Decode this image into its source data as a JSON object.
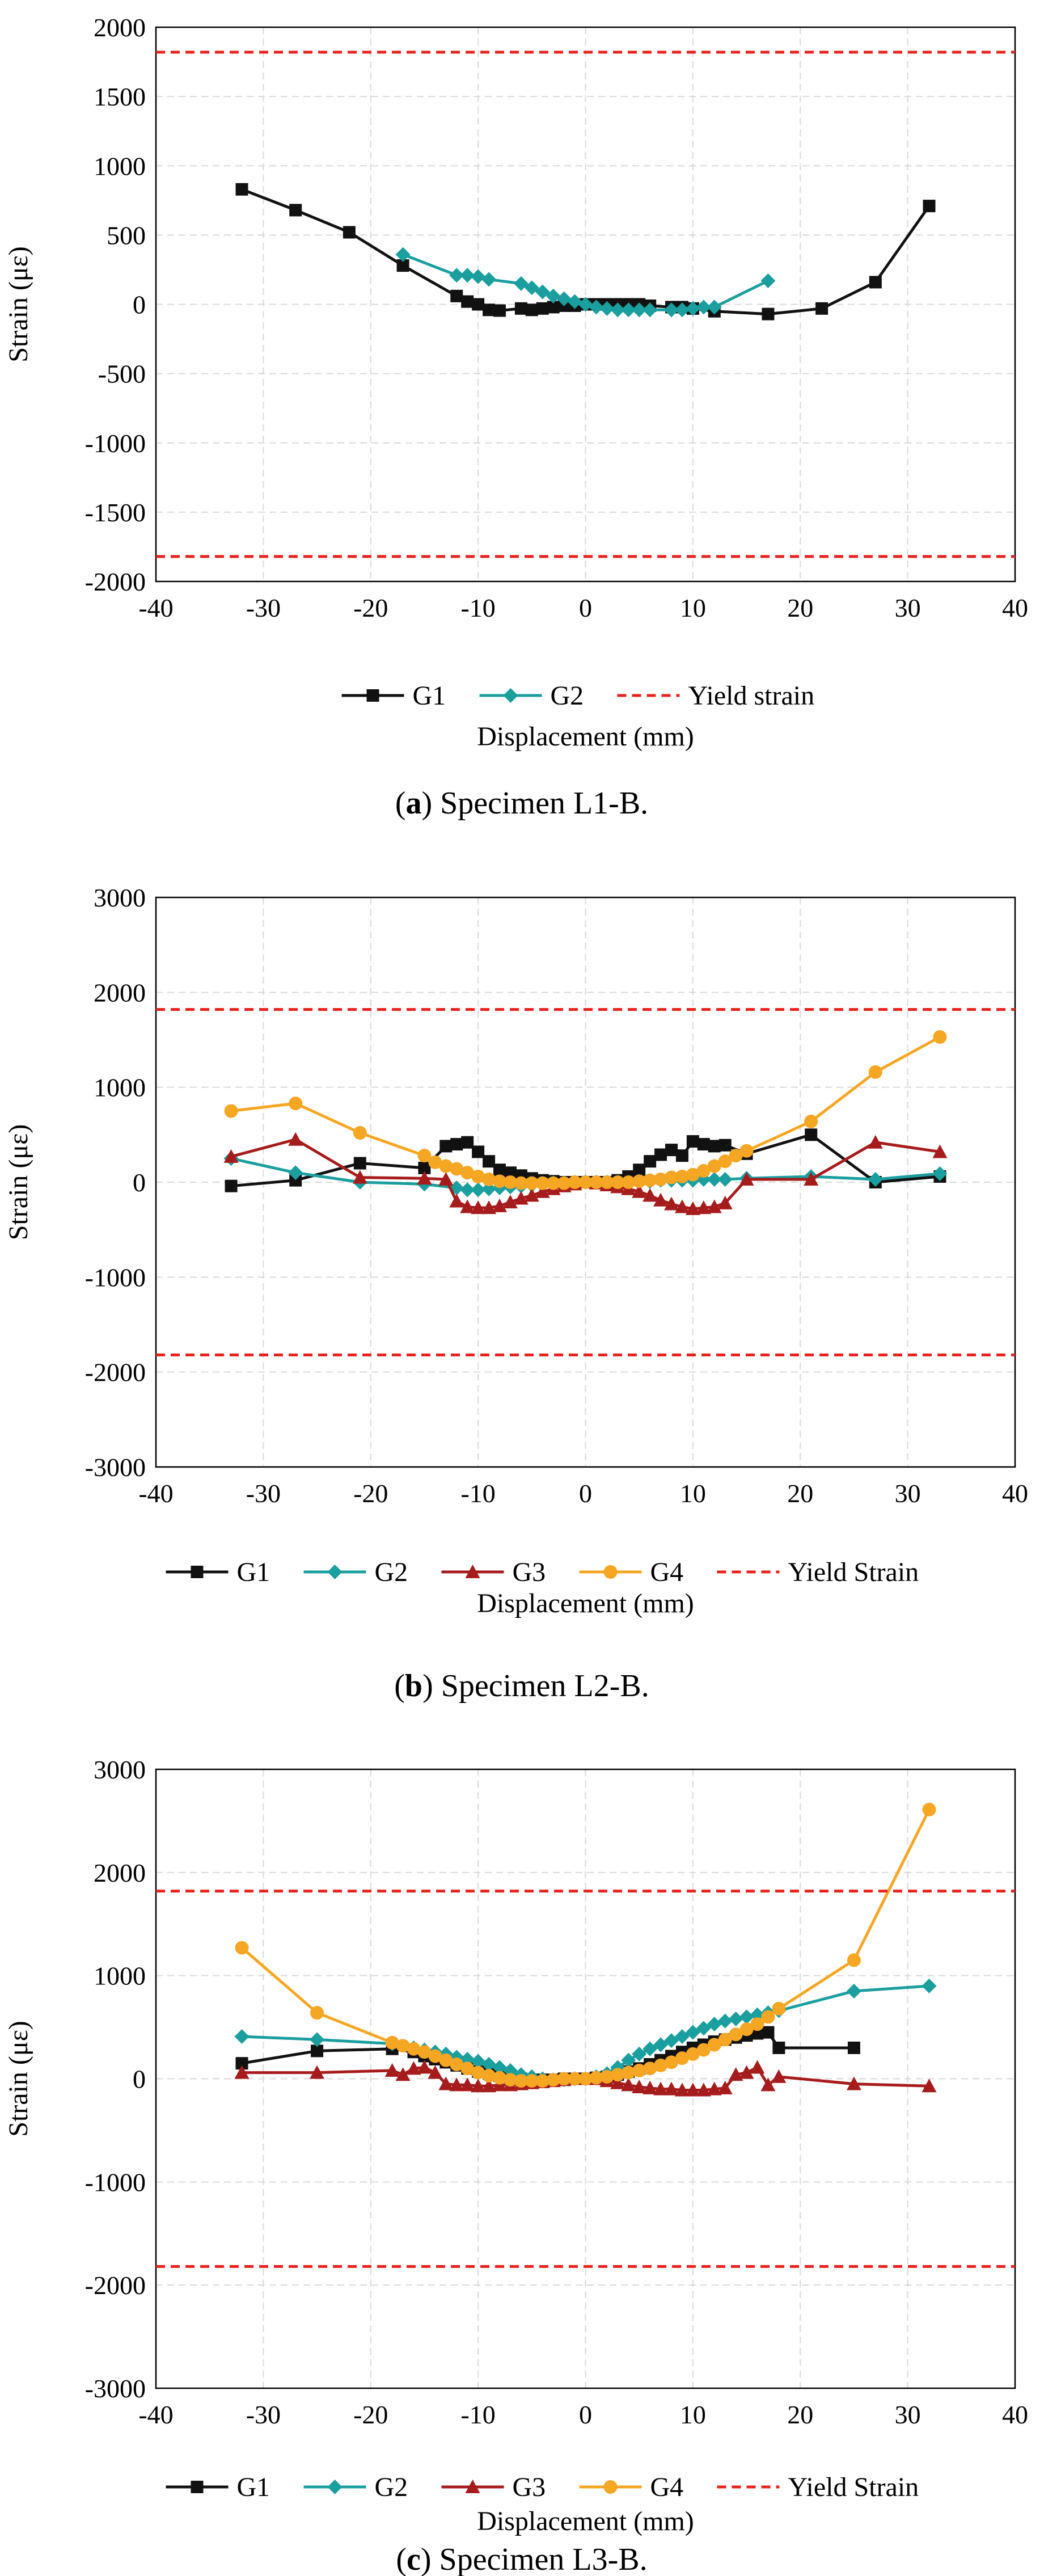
{
  "colors": {
    "G1": "#111111",
    "G2": "#1a9e9e",
    "G3": "#a61c1c",
    "G4": "#f5a623",
    "yield": "#e8231d"
  },
  "captions": [
    {
      "letter": "a",
      "rest": " Specimen L1-B."
    },
    {
      "letter": "b",
      "rest": " Specimen L2-B."
    },
    {
      "letter": "c",
      "rest": " Specimen L3-B."
    }
  ],
  "chart_data": [
    {
      "type": "line",
      "title": "",
      "xlabel": "Displacement (mm)",
      "ylabel": "Strain (με)",
      "xlim": [
        -40,
        40
      ],
      "ylim": [
        -2000,
        2000
      ],
      "xticks": [
        -40,
        -30,
        -20,
        -10,
        0,
        10,
        20,
        30,
        40
      ],
      "yticks": [
        -2000,
        -1500,
        -1000,
        -500,
        0,
        500,
        1000,
        1500,
        2000
      ],
      "grid": true,
      "legend": "bottom",
      "yield_strain": [
        1820,
        -1820
      ],
      "series": [
        {
          "name": "G1",
          "marker": "square",
          "color": "#111111",
          "x": [
            -32,
            -27,
            -22,
            -17,
            -12,
            -11,
            -10,
            -9,
            -8,
            -6,
            -5,
            -4,
            -3,
            -2,
            -1,
            0,
            1,
            2,
            3,
            4,
            5,
            6,
            8,
            9,
            10,
            12,
            17,
            22,
            27,
            32
          ],
          "y": [
            830,
            680,
            520,
            280,
            60,
            20,
            0,
            -40,
            -45,
            -30,
            -40,
            -30,
            -20,
            -10,
            -10,
            0,
            0,
            0,
            0,
            0,
            0,
            -10,
            -20,
            -20,
            -30,
            -50,
            -70,
            -30,
            160,
            710
          ]
        },
        {
          "name": "G2",
          "marker": "diamond",
          "color": "#1a9e9e",
          "x": [
            -17,
            -12,
            -11,
            -10,
            -9,
            -6,
            -5,
            -4,
            -3,
            -2,
            -1,
            0,
            1,
            2,
            3,
            4,
            5,
            6,
            8,
            9,
            10,
            11,
            12,
            17
          ],
          "y": [
            360,
            210,
            210,
            200,
            180,
            150,
            120,
            90,
            60,
            40,
            20,
            0,
            -20,
            -30,
            -40,
            -40,
            -40,
            -40,
            -40,
            -40,
            -30,
            -20,
            -20,
            170
          ]
        },
        {
          "name": "Yield strain",
          "style": "dashed",
          "color": "#e8231d",
          "y_levels": [
            1820,
            -1820
          ]
        }
      ]
    },
    {
      "type": "line",
      "title": "",
      "xlabel": "Displacement (mm)",
      "ylabel": "Strain (με)",
      "xlim": [
        -40,
        40
      ],
      "ylim": [
        -3000,
        3000
      ],
      "xticks": [
        -40,
        -30,
        -20,
        -10,
        0,
        10,
        20,
        30,
        40
      ],
      "yticks": [
        -3000,
        -2000,
        -1000,
        0,
        1000,
        2000,
        3000
      ],
      "grid": true,
      "legend": "bottom",
      "yield_strain": [
        1820,
        -1820
      ],
      "series": [
        {
          "name": "G1",
          "marker": "square",
          "color": "#111111",
          "x": [
            -33,
            -27,
            -21,
            -15,
            -13,
            -12,
            -11,
            -10,
            -9,
            -8,
            -7,
            -6,
            -5,
            -4,
            -3,
            -2,
            -1,
            0,
            1,
            2,
            3,
            4,
            5,
            6,
            7,
            8,
            9,
            10,
            11,
            12,
            13,
            15,
            21,
            27,
            33
          ],
          "y": [
            -40,
            20,
            200,
            150,
            380,
            400,
            420,
            320,
            220,
            130,
            100,
            70,
            40,
            20,
            10,
            0,
            0,
            0,
            0,
            0,
            20,
            60,
            130,
            220,
            290,
            340,
            280,
            430,
            400,
            380,
            390,
            300,
            500,
            0,
            60
          ]
        },
        {
          "name": "G2",
          "marker": "diamond",
          "color": "#1a9e9e",
          "x": [
            -33,
            -27,
            -21,
            -15,
            -12,
            -11,
            -10,
            -9,
            -8,
            -7,
            -6,
            -5,
            -4,
            -3,
            -2,
            -1,
            0,
            1,
            2,
            3,
            4,
            5,
            6,
            7,
            8,
            9,
            10,
            11,
            12,
            13,
            15,
            21,
            27,
            33
          ],
          "y": [
            250,
            100,
            0,
            -20,
            -60,
            -80,
            -80,
            -70,
            -60,
            -50,
            -40,
            -30,
            -20,
            -10,
            -10,
            0,
            0,
            0,
            0,
            0,
            0,
            10,
            10,
            20,
            20,
            20,
            20,
            30,
            30,
            30,
            40,
            60,
            30,
            90
          ]
        },
        {
          "name": "G3",
          "marker": "triangle",
          "color": "#a61c1c",
          "x": [
            -33,
            -27,
            -21,
            -15,
            -13,
            -12,
            -11,
            -10,
            -9,
            -8,
            -7,
            -6,
            -5,
            -4,
            -3,
            -2,
            -1,
            0,
            1,
            2,
            3,
            4,
            5,
            6,
            7,
            8,
            9,
            10,
            11,
            12,
            13,
            15,
            21,
            27,
            33
          ],
          "y": [
            270,
            450,
            50,
            40,
            30,
            -200,
            -260,
            -270,
            -270,
            -250,
            -210,
            -170,
            -140,
            -100,
            -70,
            -40,
            -20,
            0,
            -10,
            -30,
            -50,
            -70,
            -100,
            -140,
            -190,
            -230,
            -260,
            -280,
            -270,
            -260,
            -220,
            30,
            30,
            420,
            320
          ]
        },
        {
          "name": "G4",
          "marker": "circle",
          "color": "#f5a623",
          "x": [
            -33,
            -27,
            -21,
            -15,
            -14,
            -13,
            -12,
            -11,
            -10,
            -9,
            -8,
            -7,
            -6,
            -5,
            -4,
            -3,
            -2,
            -1,
            0,
            1,
            2,
            3,
            4,
            5,
            6,
            7,
            8,
            9,
            10,
            11,
            12,
            13,
            14,
            15,
            21,
            27,
            33
          ],
          "y": [
            750,
            830,
            520,
            280,
            210,
            170,
            140,
            100,
            60,
            30,
            10,
            0,
            -10,
            -10,
            -10,
            -10,
            -10,
            0,
            0,
            0,
            0,
            0,
            0,
            10,
            20,
            30,
            50,
            60,
            80,
            120,
            170,
            220,
            280,
            330,
            640,
            1160,
            1530
          ]
        },
        {
          "name": "Yield Strain",
          "style": "dashed",
          "color": "#e8231d",
          "y_levels": [
            1820,
            -1820
          ]
        }
      ]
    },
    {
      "type": "line",
      "title": "",
      "xlabel": "Displacement (mm)",
      "ylabel": "Strain (με)",
      "xlim": [
        -40,
        40
      ],
      "ylim": [
        -3000,
        3000
      ],
      "xticks": [
        -40,
        -30,
        -20,
        -10,
        0,
        10,
        20,
        30,
        40
      ],
      "yticks": [
        -3000,
        -2000,
        -1000,
        0,
        1000,
        2000,
        3000
      ],
      "grid": true,
      "legend": "bottom",
      "yield_strain": [
        1820,
        -1820
      ],
      "series": [
        {
          "name": "G1",
          "marker": "square",
          "color": "#111111",
          "x": [
            -32,
            -25,
            -18,
            -16,
            -15,
            -14,
            -13,
            -12,
            -11,
            -10,
            -9,
            -8,
            -7,
            -6,
            -5,
            -4,
            -3,
            -2,
            -1,
            0,
            1,
            2,
            3,
            4,
            5,
            6,
            7,
            8,
            9,
            10,
            11,
            12,
            13,
            14,
            15,
            16,
            17,
            18,
            25
          ],
          "y": [
            150,
            270,
            290,
            260,
            220,
            190,
            160,
            130,
            100,
            70,
            50,
            30,
            10,
            0,
            -10,
            -10,
            -10,
            0,
            0,
            0,
            10,
            20,
            40,
            70,
            100,
            140,
            180,
            220,
            260,
            300,
            330,
            360,
            380,
            400,
            420,
            440,
            450,
            300,
            300
          ]
        },
        {
          "name": "G2",
          "marker": "diamond",
          "color": "#1a9e9e",
          "x": [
            -32,
            -25,
            -18,
            -16,
            -15,
            -14,
            -13,
            -12,
            -11,
            -10,
            -9,
            -8,
            -7,
            -6,
            -5,
            -4,
            -3,
            -2,
            -1,
            0,
            1,
            2,
            3,
            4,
            5,
            6,
            7,
            8,
            9,
            10,
            11,
            12,
            13,
            14,
            15,
            16,
            17,
            18,
            25,
            32
          ],
          "y": [
            410,
            380,
            340,
            300,
            280,
            260,
            240,
            210,
            190,
            170,
            140,
            110,
            80,
            40,
            20,
            0,
            -10,
            -10,
            0,
            0,
            20,
            50,
            110,
            180,
            240,
            290,
            330,
            370,
            410,
            450,
            490,
            530,
            560,
            580,
            600,
            620,
            640,
            660,
            850,
            900
          ]
        },
        {
          "name": "G3",
          "marker": "triangle",
          "color": "#a61c1c",
          "x": [
            -32,
            -25,
            -18,
            -17,
            -16,
            -15,
            -14,
            -13,
            -12,
            -11,
            -10,
            -9,
            -8,
            -7,
            -6,
            -5,
            -4,
            -3,
            -2,
            -1,
            0,
            1,
            2,
            3,
            4,
            5,
            6,
            7,
            8,
            9,
            10,
            11,
            12,
            13,
            14,
            15,
            16,
            17,
            18,
            25,
            32
          ],
          "y": [
            60,
            60,
            80,
            40,
            100,
            110,
            60,
            -50,
            -60,
            -60,
            -70,
            -70,
            -60,
            -60,
            -50,
            -40,
            -30,
            -20,
            -10,
            0,
            0,
            0,
            -20,
            -40,
            -60,
            -80,
            -90,
            -100,
            -100,
            -110,
            -110,
            -110,
            -100,
            -90,
            40,
            60,
            110,
            -60,
            20,
            -50,
            -70
          ]
        },
        {
          "name": "G4",
          "marker": "circle",
          "color": "#f5a623",
          "x": [
            -32,
            -25,
            -18,
            -17,
            -16,
            -15,
            -14,
            -13,
            -12,
            -11,
            -10,
            -9,
            -8,
            -7,
            -6,
            -5,
            -4,
            -3,
            -2,
            -1,
            0,
            1,
            2,
            3,
            4,
            5,
            6,
            7,
            8,
            9,
            10,
            11,
            12,
            13,
            14,
            15,
            16,
            17,
            18,
            25,
            32
          ],
          "y": [
            1270,
            640,
            350,
            320,
            290,
            260,
            220,
            180,
            140,
            100,
            60,
            30,
            10,
            -10,
            -20,
            -20,
            -20,
            -10,
            0,
            0,
            0,
            10,
            20,
            40,
            60,
            80,
            100,
            130,
            160,
            200,
            240,
            280,
            330,
            380,
            430,
            480,
            530,
            600,
            680,
            1150,
            2610
          ]
        },
        {
          "name": "Yield Strain",
          "style": "dashed",
          "color": "#e8231d",
          "y_levels": [
            1820,
            -1820
          ]
        }
      ]
    }
  ]
}
